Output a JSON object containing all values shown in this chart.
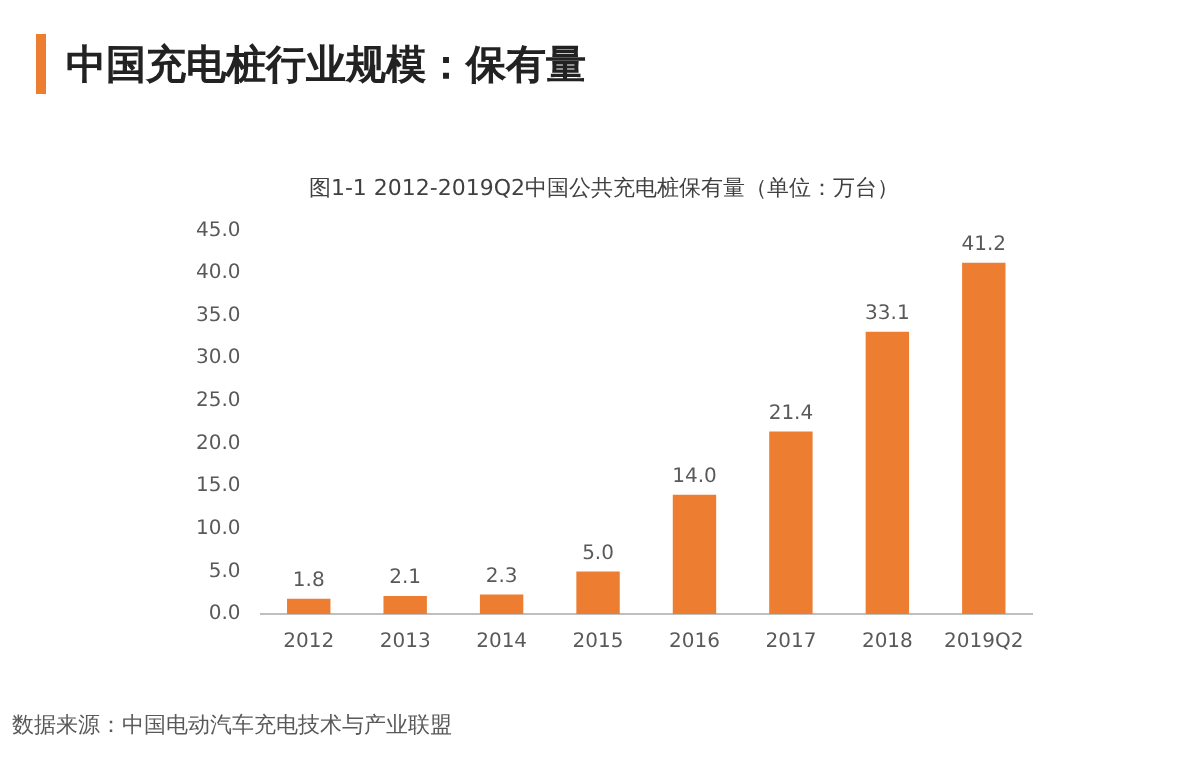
{
  "chart_data": {
    "type": "bar",
    "title": "中国充电桩行业规模：保有量",
    "subtitle": "图1-1 2012-2019Q2中国公共充电桩保有量（单位：万台）",
    "categories": [
      "2012",
      "2013",
      "2014",
      "2015",
      "2016",
      "2017",
      "2018",
      "2019Q2"
    ],
    "values": [
      1.8,
      2.1,
      2.3,
      5.0,
      14.0,
      21.4,
      33.1,
      41.2
    ],
    "color": "#ed7d31",
    "value_labels": [
      "1.8",
      "2.1",
      "2.3",
      "5.0",
      "14.0",
      "21.4",
      "33.1",
      "41.2"
    ],
    "ylim": [
      0,
      45
    ],
    "yticks": [
      {
        "value": 0,
        "label": "0.0"
      },
      {
        "value": 5,
        "label": "5.0"
      },
      {
        "value": 10,
        "label": "10.0"
      },
      {
        "value": 15,
        "label": "15.0"
      },
      {
        "value": 20,
        "label": "20.0"
      },
      {
        "value": 25,
        "label": "25.0"
      },
      {
        "value": 30,
        "label": "30.0"
      },
      {
        "value": 35,
        "label": "35.0"
      },
      {
        "value": 40,
        "label": "40.0"
      },
      {
        "value": 45,
        "label": "45.0"
      }
    ],
    "grid": false,
    "legend": false,
    "annotations": [
      "数据来源：中国电动汽车充电技术与产业联盟"
    ]
  }
}
